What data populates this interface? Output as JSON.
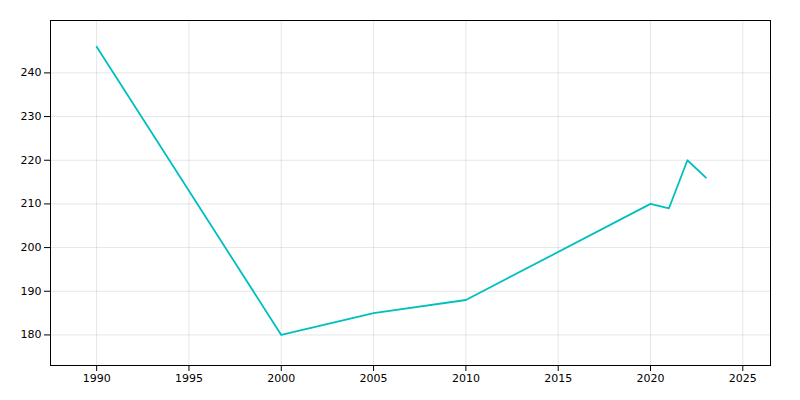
{
  "chart_data": {
    "type": "line",
    "x": [
      1990,
      2000,
      2005,
      2010,
      2020,
      2021,
      2022,
      2023
    ],
    "values": [
      246,
      180,
      185,
      188,
      210,
      209,
      220,
      216
    ],
    "color": "#00BFBF",
    "xlim": [
      1987.5,
      2026.5
    ],
    "ylim": [
      173,
      252
    ],
    "xticks": [
      1990,
      1995,
      2000,
      2005,
      2010,
      2015,
      2020,
      2025
    ],
    "yticks": [
      180,
      190,
      200,
      210,
      220,
      230,
      240
    ],
    "grid": true
  }
}
